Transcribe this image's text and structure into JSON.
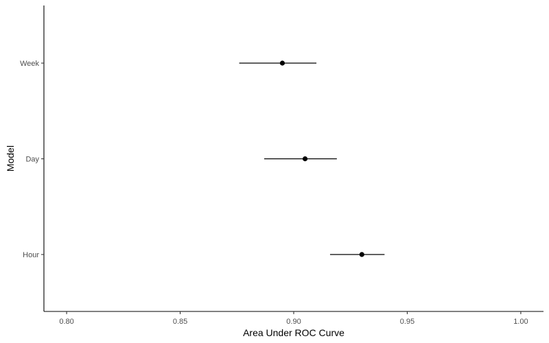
{
  "chart_data": {
    "type": "scatter",
    "title": "",
    "xlabel": "Area Under ROC Curve",
    "ylabel": "Model",
    "xlim": [
      0.79,
      1.01
    ],
    "x_ticks": [
      0.8,
      0.85,
      0.9,
      0.95,
      1.0
    ],
    "x_tick_labels": [
      "0.80",
      "0.85",
      "0.90",
      "0.95",
      "1.00"
    ],
    "categories": [
      "Hour",
      "Day",
      "Week"
    ],
    "points": [
      {
        "label": "Hour",
        "estimate": 0.93,
        "lower": 0.916,
        "upper": 0.94
      },
      {
        "label": "Day",
        "estimate": 0.905,
        "lower": 0.887,
        "upper": 0.919
      },
      {
        "label": "Week",
        "estimate": 0.895,
        "lower": 0.876,
        "upper": 0.91
      }
    ],
    "grid": false,
    "legend": "none"
  }
}
